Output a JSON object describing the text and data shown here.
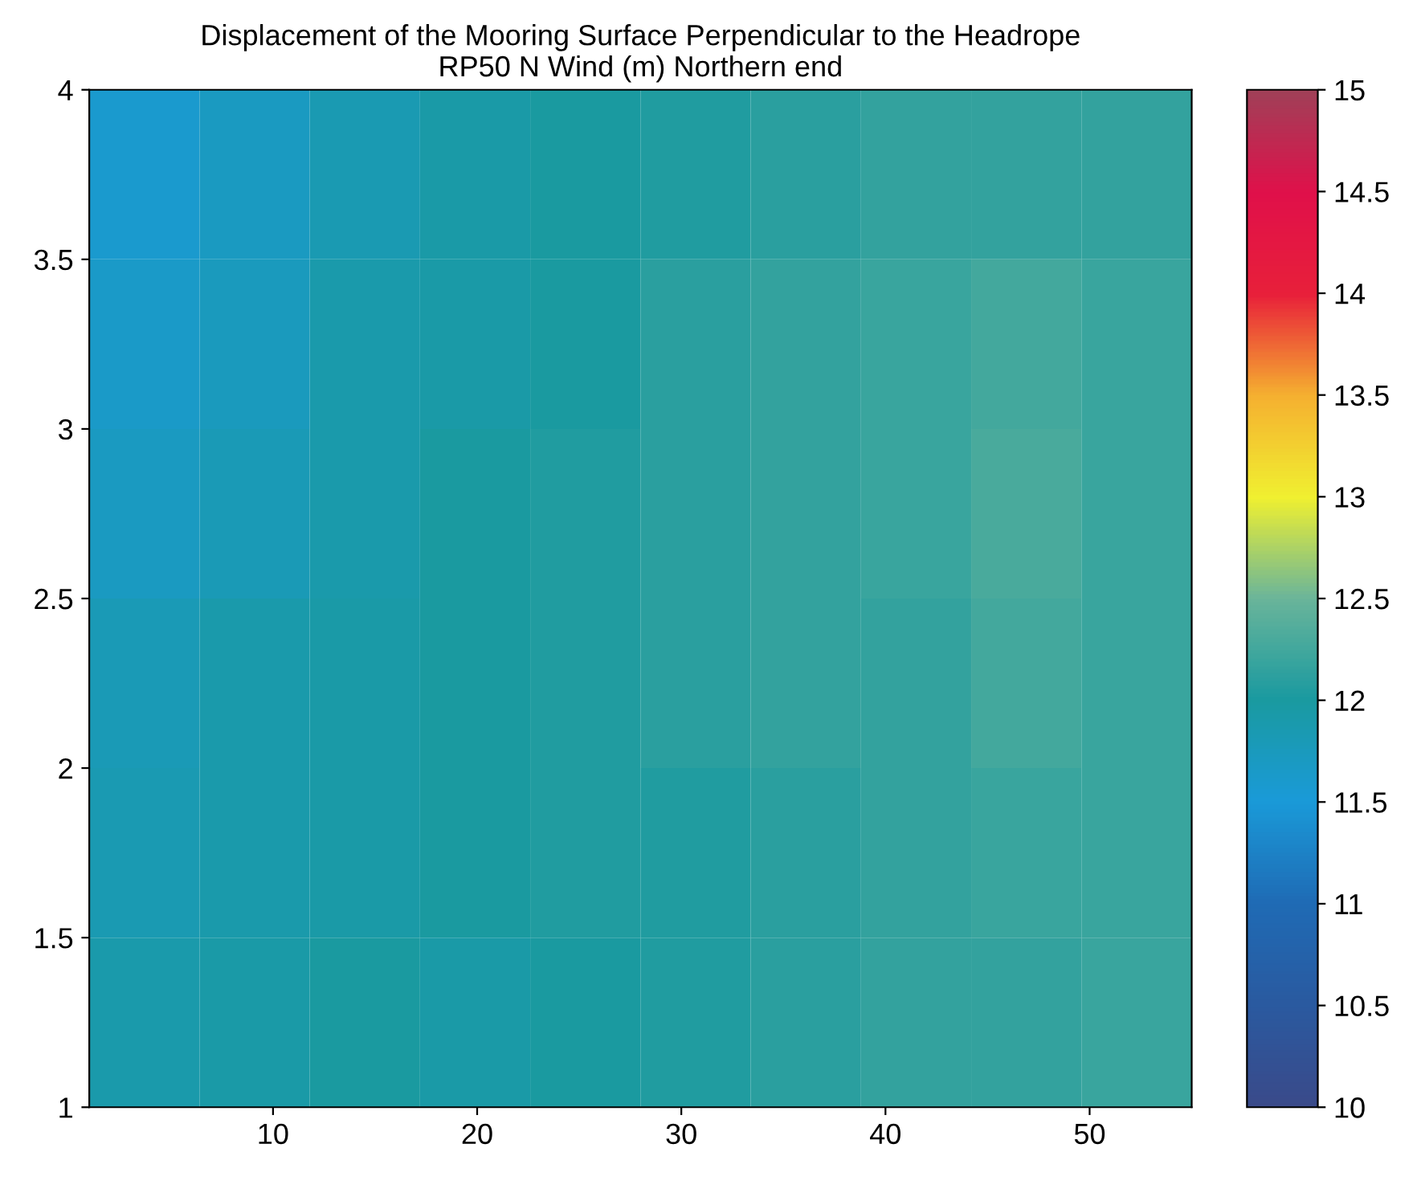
{
  "chart_data": {
    "type": "heatmap",
    "title": "Displacement of the Mooring Surface Perpendicular to the Headrope\nRP50 N Wind (m) Northern end",
    "x": [
      3.7,
      9.1,
      14.5,
      19.9,
      25.3,
      30.7,
      36.1,
      41.5,
      46.9,
      52.3
    ],
    "y": [
      3.75,
      3.25,
      2.75,
      2.25,
      1.75,
      1.25
    ],
    "cells": [
      [
        11.6,
        11.7,
        11.85,
        11.95,
        12.0,
        12.05,
        12.1,
        12.15,
        12.15,
        12.15
      ],
      [
        11.65,
        11.75,
        11.9,
        11.95,
        12.0,
        12.1,
        12.15,
        12.2,
        12.25,
        12.2
      ],
      [
        11.7,
        11.8,
        11.9,
        12.0,
        12.05,
        12.1,
        12.15,
        12.2,
        12.3,
        12.2
      ],
      [
        11.8,
        11.9,
        11.95,
        12.0,
        12.05,
        12.1,
        12.15,
        12.15,
        12.25,
        12.2
      ],
      [
        11.85,
        11.9,
        11.95,
        12.0,
        12.05,
        12.05,
        12.1,
        12.15,
        12.2,
        12.2
      ],
      [
        11.9,
        11.95,
        12.0,
        11.95,
        12.0,
        12.05,
        12.1,
        12.15,
        12.15,
        12.2
      ]
    ],
    "colors": [
      "#3a4a8a",
      "#2a5aa0",
      "#1f6bb5",
      "#1a9ad8",
      "#1a9aa0",
      "#6ab59a",
      "#f0f030",
      "#f5b030",
      "#e8203a",
      "#e0104a",
      "#a04058"
    ],
    "xlim": [
      1,
      55
    ],
    "ylim": [
      1,
      4
    ],
    "xticks": [
      10,
      20,
      30,
      40,
      50
    ],
    "yticks": [
      1,
      1.5,
      2,
      2.5,
      3,
      3.5,
      4
    ],
    "clim": [
      10,
      15
    ],
    "cticks": [
      10,
      10.5,
      11,
      11.5,
      12,
      12.5,
      13,
      13.5,
      14,
      14.5,
      15
    ]
  }
}
